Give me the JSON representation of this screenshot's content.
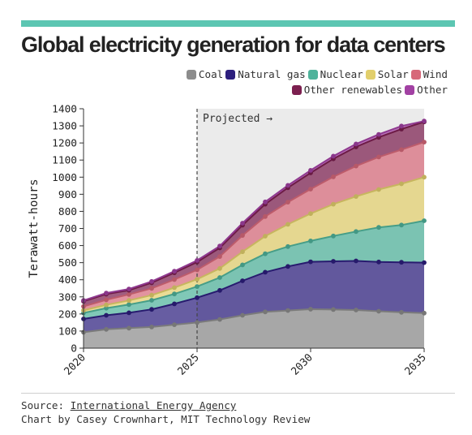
{
  "title": "Global electricity generation for data centers",
  "legend_rows": [
    [
      0,
      1,
      2,
      3,
      4
    ],
    [
      5,
      6
    ]
  ],
  "annotation": "Projected →",
  "footer": {
    "source_label": "Source: ",
    "source_link": "International Energy Agency",
    "credit": "Chart by Casey Crownhart, MIT Technology Review"
  },
  "chart_data": {
    "type": "area",
    "stacked": true,
    "title": "Global electricity generation for data centers",
    "ylabel": "Terawatt-hours",
    "xlabel": "",
    "x": [
      2020,
      2021,
      2022,
      2023,
      2024,
      2025,
      2026,
      2027,
      2028,
      2029,
      2030,
      2031,
      2032,
      2033,
      2034,
      2035
    ],
    "xticks": [
      "2020",
      "2025",
      "2030",
      "2035"
    ],
    "yticks": [
      "0",
      "100",
      "200",
      "300",
      "400",
      "500",
      "600",
      "700",
      "800",
      "900",
      "1000",
      "1100",
      "1200",
      "1300",
      "1400"
    ],
    "ylim": [
      0,
      1400
    ],
    "xlim": [
      2020,
      2035
    ],
    "projected_from": 2025,
    "grid": false,
    "legend_position": "top-right",
    "series": [
      {
        "name": "Coal",
        "color": "#8c8c8c",
        "values": [
          93,
          110,
          117,
          124,
          137,
          150,
          168,
          192,
          212,
          220,
          228,
          226,
          223,
          216,
          210,
          205
        ]
      },
      {
        "name": "Natural gas",
        "color": "#2d1f7e",
        "values": [
          78,
          82,
          90,
          103,
          122,
          145,
          170,
          202,
          232,
          258,
          277,
          282,
          287,
          288,
          292,
          295
        ]
      },
      {
        "name": "Nuclear",
        "color": "#4fb39b",
        "values": [
          35,
          42,
          48,
          53,
          58,
          65,
          75,
          93,
          108,
          116,
          122,
          148,
          172,
          202,
          218,
          245
        ]
      },
      {
        "name": "Solar",
        "color": "#e2cf6c",
        "values": [
          15,
          19,
          24,
          30,
          37,
          43,
          53,
          77,
          103,
          130,
          160,
          186,
          205,
          222,
          241,
          255
        ]
      },
      {
        "name": "Wind",
        "color": "#d7697a",
        "values": [
          23,
          30,
          35,
          40,
          47,
          55,
          70,
          95,
          115,
          130,
          143,
          160,
          178,
          190,
          200,
          205
        ]
      },
      {
        "name": "Other renewables",
        "color": "#7c1f4f",
        "values": [
          30,
          33,
          25,
          32,
          40,
          45,
          50,
          60,
          72,
          84,
          95,
          105,
          112,
          115,
          120,
          118
        ]
      },
      {
        "name": "Other",
        "color": "#a241a3",
        "values": [
          5,
          6,
          7,
          8,
          9,
          10,
          11,
          12,
          13,
          14,
          15,
          16,
          17,
          17,
          18,
          5
        ]
      }
    ]
  }
}
